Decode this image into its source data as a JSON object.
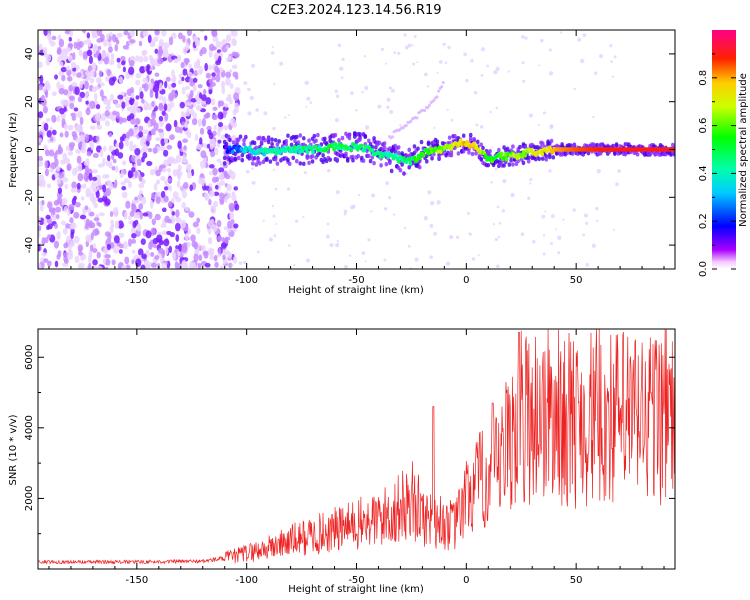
{
  "title": "C2E3.2024.123.14.56.R19",
  "chart_data": [
    {
      "type": "heatmap",
      "xlabel": "Height of straight line (km)",
      "ylabel": "Frequency (Hz)",
      "xlim": [
        -195,
        95
      ],
      "ylim": [
        -50,
        50
      ],
      "xticks": [
        -150,
        -100,
        -50,
        0,
        50
      ],
      "yticks": [
        -40,
        -20,
        0,
        20,
        40
      ],
      "colorbar": {
        "label": "Normalized spectral amplitude",
        "range": [
          0.0,
          1.0
        ],
        "ticks": [
          "0.0",
          "0.2",
          "0.4",
          "0.6",
          "0.8"
        ],
        "colormap": [
          "#ff00ff",
          "#0000ff",
          "#00ffff",
          "#00ff00",
          "#ffff00",
          "#ff0000",
          "#ff00aa"
        ]
      },
      "signal_trace": {
        "x": [
          -110,
          -100,
          -90,
          -80,
          -70,
          -60,
          -50,
          -45,
          -40,
          -35,
          -30,
          -25,
          -20,
          -15,
          -10,
          -5,
          0,
          5,
          10,
          15,
          20,
          25,
          30,
          35,
          40,
          50,
          60,
          70,
          80,
          90,
          95
        ],
        "y": [
          0,
          0,
          -1,
          0,
          0,
          1,
          1,
          0,
          -2,
          -3,
          -4,
          -5,
          -2,
          0,
          0,
          2,
          3,
          1,
          -4,
          -3,
          -3,
          -2,
          -1,
          -1,
          0,
          0,
          0,
          0,
          0,
          0,
          0
        ],
        "amplitude": [
          0.15,
          0.35,
          0.4,
          0.45,
          0.45,
          0.5,
          0.45,
          0.45,
          0.45,
          0.4,
          0.45,
          0.5,
          0.55,
          0.6,
          0.65,
          0.7,
          0.8,
          0.75,
          0.55,
          0.55,
          0.6,
          0.65,
          0.7,
          0.75,
          0.8,
          0.85,
          0.88,
          0.9,
          0.9,
          0.9,
          0.9
        ]
      },
      "noise_region_x": [
        -195,
        -110
      ],
      "spur_trace": {
        "x": [
          -35,
          -25,
          -15,
          -10
        ],
        "y": [
          5,
          12,
          20,
          28
        ]
      }
    },
    {
      "type": "line",
      "xlabel": "Height of straight line (km)",
      "ylabel": "SNR (10 * v/v)",
      "xlim": [
        -195,
        95
      ],
      "ylim": [
        0,
        6800
      ],
      "xticks": [
        -150,
        -100,
        -50,
        0,
        50
      ],
      "yticks": [
        2000,
        4000,
        6000
      ],
      "color": "#ee2222",
      "envelope": {
        "x": [
          -195,
          -150,
          -120,
          -110,
          -100,
          -90,
          -80,
          -70,
          -60,
          -50,
          -40,
          -30,
          -25,
          -20,
          -15,
          -10,
          -5,
          0,
          5,
          10,
          15,
          20,
          25,
          30,
          35,
          40,
          50,
          60,
          70,
          80,
          90,
          95
        ],
        "y": [
          200,
          200,
          220,
          300,
          450,
          600,
          800,
          950,
          1100,
          1250,
          1400,
          1700,
          2000,
          1500,
          1400,
          1300,
          1200,
          2000,
          2400,
          2600,
          2800,
          3800,
          4300,
          4400,
          4400,
          4300,
          4200,
          4300,
          4300,
          4300,
          4400,
          4300
        ]
      },
      "peaks": [
        {
          "x": -15,
          "y": 4600
        },
        {
          "x": 12,
          "y": 4700
        },
        {
          "x": 24,
          "y": 6700
        },
        {
          "x": 88,
          "y": 5600
        }
      ]
    }
  ]
}
